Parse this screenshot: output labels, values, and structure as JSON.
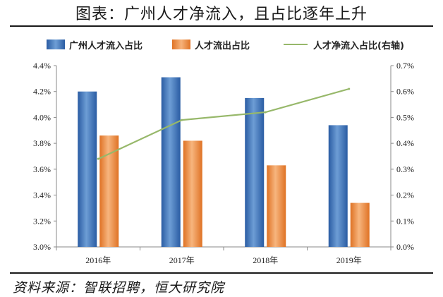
{
  "page": {
    "title": "图表：广州人才净流入，且占比逐年上升",
    "source": "资料来源：智联招聘，恒大研究院"
  },
  "chart_data": {
    "type": "bar",
    "title": "图表：广州人才净流入，且占比逐年上升",
    "categories": [
      "2016年",
      "2017年",
      "2018年",
      "2019年"
    ],
    "series": [
      {
        "name": "广州人才流入占比",
        "type": "bar",
        "axis": "left",
        "color": "#2e64b0",
        "values": [
          4.2,
          4.31,
          4.15,
          3.94
        ]
      },
      {
        "name": "人才流出占比",
        "type": "bar",
        "axis": "left",
        "color": "#ee8030",
        "values": [
          3.86,
          3.82,
          3.63,
          3.34
        ]
      },
      {
        "name": "人才净流入占比(右轴)",
        "type": "line",
        "axis": "right",
        "color": "#97b86a",
        "values": [
          0.34,
          0.49,
          0.52,
          0.61
        ]
      }
    ],
    "y_left": {
      "min": 3.0,
      "max": 4.4,
      "step": 0.2,
      "decimals": 1,
      "unit": "%"
    },
    "y_right": {
      "min": 0.0,
      "max": 0.7,
      "step": 0.1,
      "decimals": 1,
      "unit": "%"
    },
    "grid": false,
    "legend_position": "top"
  }
}
